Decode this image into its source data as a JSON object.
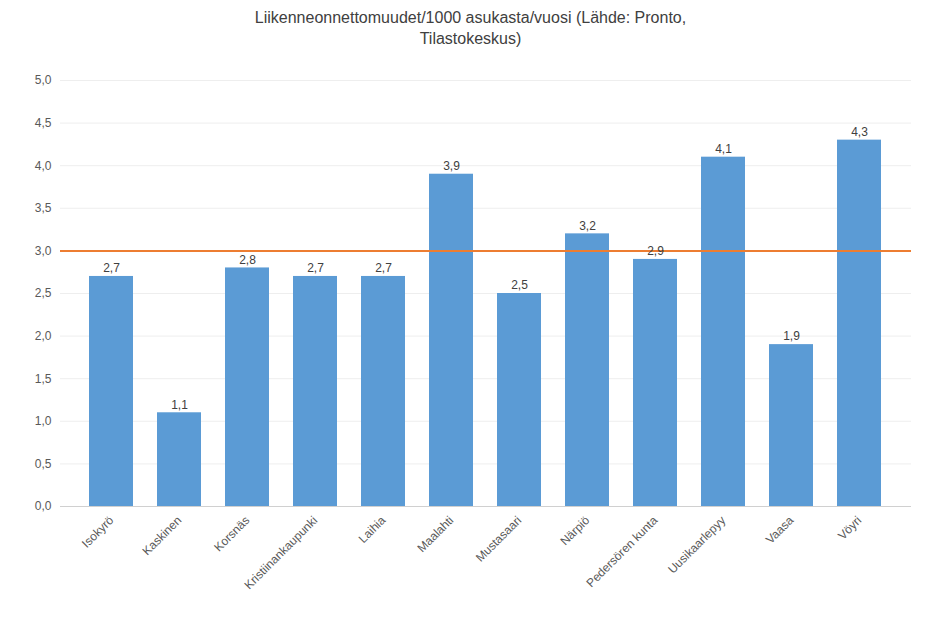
{
  "chart_data": {
    "type": "bar",
    "title": "Liikenneonnettomuudet/1000 asukasta/vuosi (Lähde: Pronto,\nTilastokeskus)",
    "categories": [
      "Isokyrö",
      "Kaskinen",
      "Korsnäs",
      "Kristiinankaupunki",
      "Laihia",
      "Maalahti",
      "Mustasaari",
      "Närpiö",
      "Pedersören kunta",
      "Uusikaarlepyy",
      "Vaasa",
      "Vöyri"
    ],
    "values": [
      2.7,
      1.1,
      2.8,
      2.7,
      2.7,
      3.9,
      2.5,
      3.2,
      2.9,
      4.1,
      1.9,
      4.3
    ],
    "value_labels": [
      "2,7",
      "1,1",
      "2,8",
      "2,7",
      "2,7",
      "3,9",
      "2,5",
      "3,2",
      "2,9",
      "4,1",
      "1,9",
      "4,3"
    ],
    "data_labels": true,
    "color": "#5B9BD5",
    "reference_line": {
      "y": 3.0,
      "color": "#ED7D31"
    },
    "ylim": [
      0,
      5.0
    ],
    "yticks": [
      {
        "value": 0.0,
        "label": "0,0"
      },
      {
        "value": 0.5,
        "label": "0,5"
      },
      {
        "value": 1.0,
        "label": "1,0"
      },
      {
        "value": 1.5,
        "label": "1,5"
      },
      {
        "value": 2.0,
        "label": "2,0"
      },
      {
        "value": 2.5,
        "label": "2,5"
      },
      {
        "value": 3.0,
        "label": "3,0"
      },
      {
        "value": 3.5,
        "label": "3,5"
      },
      {
        "value": 4.0,
        "label": "4,0"
      },
      {
        "value": 4.5,
        "label": "4,5"
      },
      {
        "value": 5.0,
        "label": "5,0"
      }
    ],
    "grid": true
  }
}
